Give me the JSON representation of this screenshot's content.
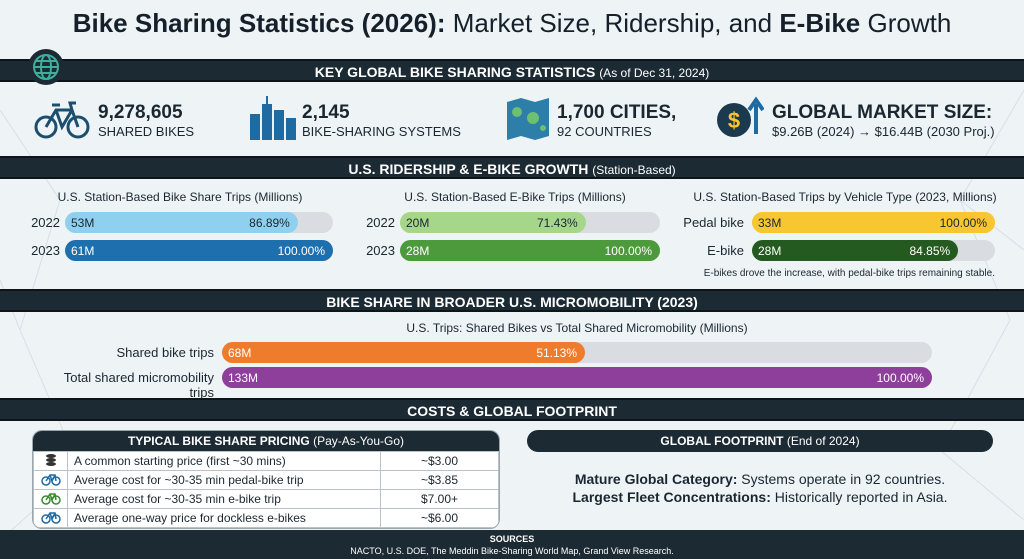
{
  "title": {
    "bold": "Bike Sharing Statistics (2026):",
    "rest1": " Market Size, Ridership, and ",
    "bold2": "E-Bike",
    "rest2": " Growth"
  },
  "band1": {
    "title": "KEY GLOBAL BIKE SHARING STATISTICS",
    "sub": "(As of Dec 31, 2024)"
  },
  "stats": [
    {
      "icon": "bicycle-icon",
      "num": "9,278,605",
      "lbl": "SHARED BIKES"
    },
    {
      "icon": "city-buildings-icon",
      "num": "2,145",
      "lbl": "BIKE-SHARING SYSTEMS"
    },
    {
      "icon": "world-map-icon",
      "num": "1,700 CITIES,",
      "lbl": "92 COUNTRIES"
    },
    {
      "icon": "dollar-growth-icon",
      "num": "GLOBAL MARKET SIZE:",
      "lbl": "$9.26B (2024) → $16.44B (2030 Proj.)"
    }
  ],
  "band2": {
    "title": "U.S. RIDERSHIP & E-BIKE GROWTH",
    "sub": "(Station-Based)"
  },
  "band3": {
    "title": "BIKE SHARE IN BROADER U.S. MICROMOBILITY (2023)"
  },
  "band4": {
    "title": "COSTS & GLOBAL FOOTPRINT"
  },
  "chart_data": [
    {
      "type": "bar",
      "title": "U.S. Station-Based Bike Share Trips (Millions)",
      "categories": [
        "2022",
        "2023"
      ],
      "values": [
        53,
        61
      ],
      "value_labels": [
        "53M",
        "61M"
      ],
      "pct_labels": [
        "86.89%",
        "100.00%"
      ],
      "pct": [
        86.89,
        100
      ],
      "colors": [
        "#8fd0ef",
        "#1e6fae"
      ]
    },
    {
      "type": "bar",
      "title": "U.S. Station-Based E-Bike Trips (Millions)",
      "categories": [
        "2022",
        "2023"
      ],
      "values": [
        20,
        28
      ],
      "value_labels": [
        "20M",
        "28M"
      ],
      "pct_labels": [
        "71.43%",
        "100.00%"
      ],
      "pct": [
        71.43,
        100
      ],
      "colors": [
        "#a6d68a",
        "#4d9a3c"
      ]
    },
    {
      "type": "bar",
      "title": "U.S. Station-Based Trips by Vehicle Type (2023, Millions)",
      "categories": [
        "Pedal bike",
        "E-bike"
      ],
      "values": [
        33,
        28
      ],
      "value_labels": [
        "33M",
        "28M"
      ],
      "pct_labels": [
        "100.00%",
        "84.85%"
      ],
      "pct": [
        100,
        84.85
      ],
      "colors": [
        "#f7c631",
        "#245a1f"
      ],
      "note": "E-bikes drove the increase, with pedal-bike trips remaining stable."
    },
    {
      "type": "bar",
      "title": "U.S. Trips: Shared Bikes vs Total Shared Micromobility (Millions)",
      "categories": [
        "Shared bike trips",
        "Total shared micromobility trips"
      ],
      "values": [
        68,
        133
      ],
      "value_labels": [
        "68M",
        "133M"
      ],
      "pct_labels": [
        "51.13%",
        "100.00%"
      ],
      "pct": [
        51.13,
        100
      ],
      "colors": [
        "#ef7c2c",
        "#8e3f9c"
      ]
    }
  ],
  "pricing": {
    "title": "TYPICAL BIKE SHARE PRICING",
    "sub": "(Pay-As-You-Go)",
    "rows": [
      {
        "icon": "coins-icon",
        "label": "A common starting price (first ~30 mins)",
        "price": "~$3.00"
      },
      {
        "icon": "bicycle-icon",
        "label": "Average cost for ~30-35 min pedal-bike trip",
        "price": "~$3.85"
      },
      {
        "icon": "ebike-icon",
        "label": "Average cost for ~30-35 min e-bike trip",
        "price": "$7.00+"
      },
      {
        "icon": "bicycle-icon",
        "label": "Average one-way price for dockless e-bikes",
        "price": "~$6.00"
      }
    ]
  },
  "footprint": {
    "title": "GLOBAL FOOTPRINT",
    "sub": "(End of 2024)",
    "l1b": "Mature Global Category:",
    "l1": " Systems operate in 92 countries.",
    "l2b": "Largest Fleet Concentrations:",
    "l2": " Historically reported in Asia."
  },
  "sources": {
    "title": "SOURCES",
    "text": "NACTO, U.S. DOE, The Meddin Bike-Sharing World Map, Grand View Research."
  }
}
